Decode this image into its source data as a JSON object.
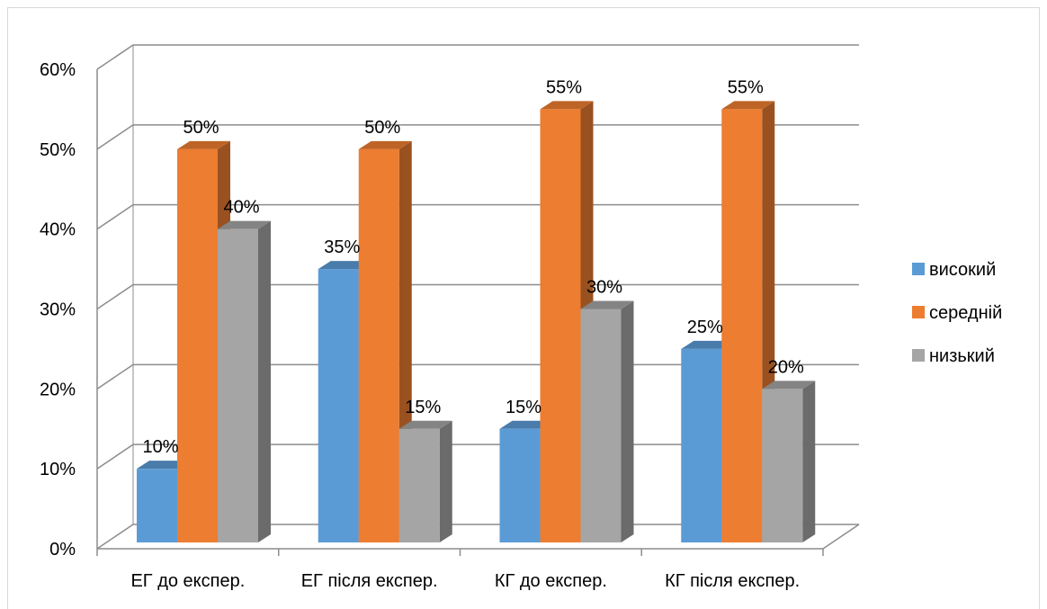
{
  "chart_data": {
    "type": "bar",
    "categories": [
      "ЕГ до експер.",
      "ЕГ після експер.",
      "КГ до експер.",
      "КГ після експер."
    ],
    "series": [
      {
        "name": "високий",
        "values": [
          0.1,
          0.35,
          0.15,
          0.25
        ],
        "color": "#5b9bd5"
      },
      {
        "name": "середній",
        "values": [
          0.5,
          0.5,
          0.55,
          0.55
        ],
        "color": "#ed7d31"
      },
      {
        "name": "низький",
        "values": [
          0.4,
          0.15,
          0.3,
          0.2
        ],
        "color": "#a5a5a5"
      }
    ],
    "data_labels": [
      [
        "10%",
        "50%",
        "40%"
      ],
      [
        "35%",
        "50%",
        "15%"
      ],
      [
        "15%",
        "55%",
        "30%"
      ],
      [
        "25%",
        "55%",
        "20%"
      ]
    ],
    "y_ticks": [
      "0%",
      "10%",
      "20%",
      "30%",
      "40%",
      "50%",
      "60%"
    ],
    "ylim": [
      0,
      0.6
    ],
    "grid": true,
    "legend_position": "right",
    "style": "3d-clustered-column"
  }
}
